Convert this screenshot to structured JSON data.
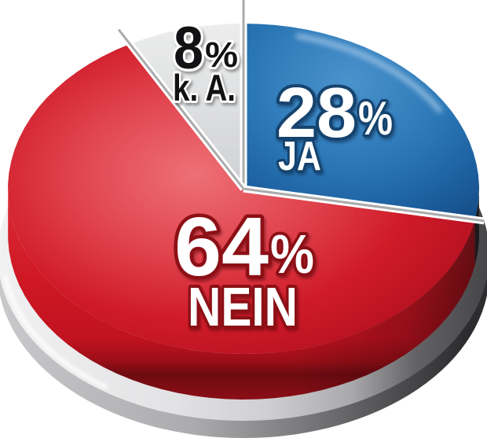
{
  "chart_data": {
    "type": "pie",
    "style": "3d-glossy-button",
    "unit": "%",
    "start_angle_deg": 0,
    "direction": "clockwise",
    "legend_position": "on-slices",
    "slices": [
      {
        "id": "ja",
        "label": "JA",
        "value": 28,
        "display": "28%",
        "color": "#2a76b5",
        "label_outline_color": "#15436e"
      },
      {
        "id": "nein",
        "label": "NEIN",
        "value": 64,
        "display": "64%",
        "color": "#d21d2a",
        "label_outline_color": "#8c1016"
      },
      {
        "id": "ka",
        "label": "k. A.",
        "value": 8,
        "display": "8%",
        "color": "#dcdde0",
        "label_outline_color": "#ffffff"
      }
    ]
  },
  "labels": {
    "ja": {
      "value": "28",
      "suffix": "%",
      "name": "JA"
    },
    "nein": {
      "value": "64",
      "suffix": "%",
      "name": "NEIN"
    },
    "ka": {
      "value": "8",
      "suffix": "%",
      "name": "k. A."
    }
  },
  "colors": {
    "background": "#ffffff",
    "divider_line": "#ffffff",
    "divider_core": "#aaabad",
    "base_silver": "#d2d2d4",
    "shadow_side": "#38383b"
  }
}
